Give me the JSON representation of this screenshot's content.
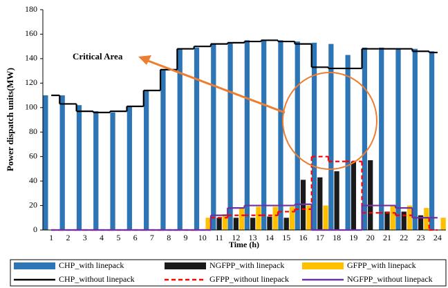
{
  "chart_data": {
    "type": "bar",
    "y_label": "Power dispatch units(MW)",
    "x_label": "Time (h)",
    "annotation": "Critical Area",
    "categories": [
      "1",
      "2",
      "3",
      "4",
      "5",
      "6",
      "7",
      "8",
      "9",
      "10",
      "11",
      "12",
      "13",
      "14",
      "15",
      "16",
      "17",
      "18",
      "19",
      "20",
      "21",
      "22",
      "23",
      "24"
    ],
    "series": [
      {
        "name": "CHP_with linepack",
        "type": "bar",
        "color": "#2e75b6",
        "values": [
          110,
          110,
          102,
          97,
          96,
          101,
          114,
          131,
          148,
          149,
          152,
          153,
          155,
          155,
          155,
          154,
          153,
          152,
          143,
          149,
          149,
          148,
          148,
          146
        ]
      },
      {
        "name": "NGFPP_with linepack",
        "type": "bar",
        "color": "#1a1a1a",
        "values": [
          0,
          0,
          0,
          0,
          0,
          0,
          0,
          0,
          0,
          0,
          10,
          10,
          10,
          11,
          10,
          41,
          43,
          48,
          56,
          57,
          15,
          15,
          12,
          0
        ]
      },
      {
        "name": "GFPP_with linepack",
        "type": "bar",
        "color": "#ffc000",
        "values": [
          0,
          0,
          0,
          0,
          0,
          0,
          0,
          0,
          0,
          10,
          13,
          18,
          19,
          19,
          19,
          20,
          20,
          0,
          0,
          0,
          20,
          20,
          18,
          10
        ]
      },
      {
        "name": "CHP_without linepack",
        "type": "step",
        "color": "#000000",
        "dash": false,
        "values": [
          110,
          103,
          97,
          96,
          97,
          101,
          114,
          131,
          148,
          150,
          152,
          153,
          154,
          155,
          154,
          152,
          133,
          132,
          132,
          148,
          148,
          148,
          146,
          145
        ]
      },
      {
        "name": "GFPP_without linepack",
        "type": "step",
        "color": "#ff0000",
        "dash": true,
        "values": [
          0,
          0,
          0,
          0,
          0,
          0,
          0,
          0,
          0,
          0,
          10,
          12,
          12,
          12,
          15,
          17,
          60,
          56,
          56,
          14,
          14,
          12,
          10,
          0
        ]
      },
      {
        "name": "NGFPP_without linepack",
        "type": "step",
        "color": "#7030a0",
        "dash": false,
        "values": [
          0,
          0,
          0,
          0,
          0,
          0,
          0,
          0,
          0,
          0,
          12,
          18,
          20,
          20,
          20,
          21,
          0,
          0,
          0,
          20,
          20,
          18,
          10,
          10
        ]
      }
    ],
    "ylim": [
      0,
      180
    ],
    "yticks": [
      0,
      20,
      40,
      60,
      80,
      100,
      120,
      140,
      160,
      180
    ],
    "grid": false
  }
}
